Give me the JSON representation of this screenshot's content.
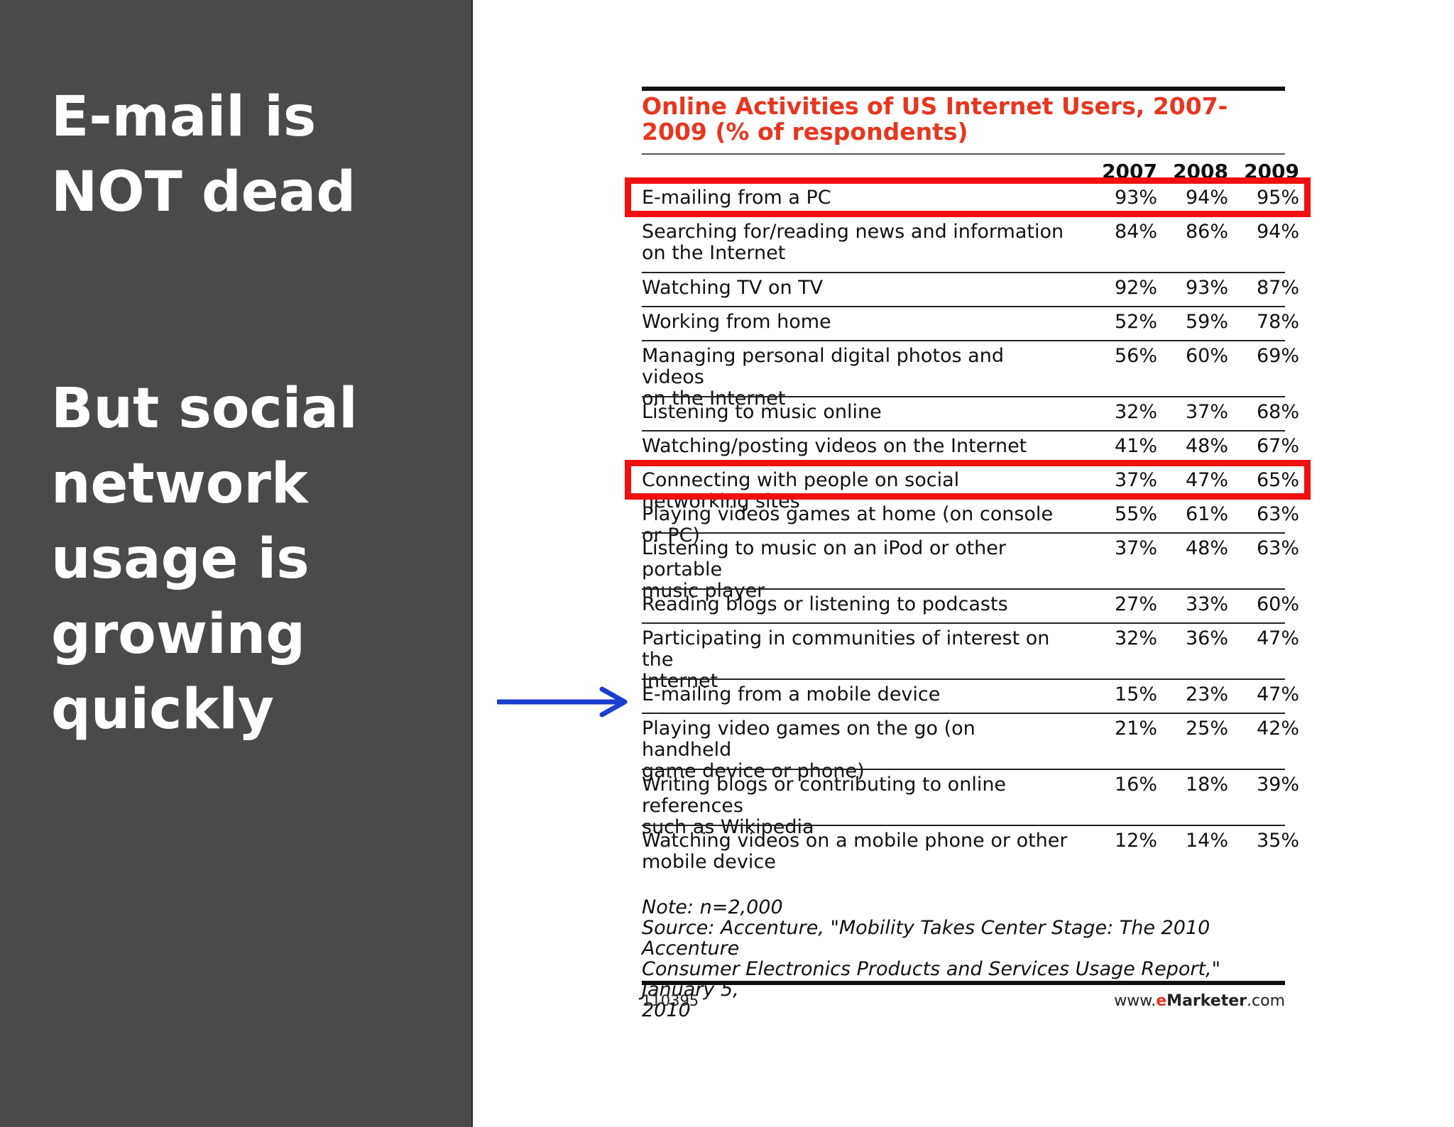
{
  "slide": {
    "headline_1": "E-mail is\nNOT dead",
    "headline_2": "But social\nnetwork\nusage is\ngrowing\nquickly"
  },
  "colors": {
    "panel": "#4a4a4a",
    "title_red": "#e8361e",
    "highlight_red": "#f01010",
    "arrow_blue": "#1a3ecf"
  },
  "icons": {
    "pointer": "arrow-right-icon"
  },
  "chart_data": {
    "type": "table",
    "title": "Online Activities of US Internet Users, 2007-2009 (% of respondents)",
    "columns": [
      "2007",
      "2008",
      "2009"
    ],
    "rows": [
      {
        "label": "E-mailing from a PC",
        "values": [
          "93%",
          "94%",
          "95%"
        ],
        "highlighted": true
      },
      {
        "label": "Searching for/reading news and information\non the Internet",
        "values": [
          "84%",
          "86%",
          "94%"
        ]
      },
      {
        "label": "Watching TV on TV",
        "values": [
          "92%",
          "93%",
          "87%"
        ]
      },
      {
        "label": "Working from home",
        "values": [
          "52%",
          "59%",
          "78%"
        ]
      },
      {
        "label": "Managing personal digital photos and videos\non the Internet",
        "values": [
          "56%",
          "60%",
          "69%"
        ]
      },
      {
        "label": "Listening to music online",
        "values": [
          "32%",
          "37%",
          "68%"
        ]
      },
      {
        "label": "Watching/posting videos on the Internet",
        "values": [
          "41%",
          "48%",
          "67%"
        ]
      },
      {
        "label": "Connecting with people on social networking sites",
        "values": [
          "37%",
          "47%",
          "65%"
        ],
        "highlighted": true
      },
      {
        "label": "Playing videos games at home (on console or PC)",
        "values": [
          "55%",
          "61%",
          "63%"
        ]
      },
      {
        "label": "Listening to music on an iPod or other portable\nmusic player",
        "values": [
          "37%",
          "48%",
          "63%"
        ]
      },
      {
        "label": "Reading blogs or listening to podcasts",
        "values": [
          "27%",
          "33%",
          "60%"
        ]
      },
      {
        "label": "Participating in communities of interest on the\nInternet",
        "values": [
          "32%",
          "36%",
          "47%"
        ]
      },
      {
        "label": "E-mailing from a mobile device",
        "values": [
          "15%",
          "23%",
          "47%"
        ],
        "arrow": true
      },
      {
        "label": "Playing video games on the go (on handheld\ngame device or phone)",
        "values": [
          "21%",
          "25%",
          "42%"
        ]
      },
      {
        "label": "Writing blogs or contributing to online references\nsuch as Wikipedia",
        "values": [
          "16%",
          "18%",
          "39%"
        ]
      },
      {
        "label": "Watching videos on a mobile phone or other\nmobile device",
        "values": [
          "12%",
          "14%",
          "35%"
        ]
      }
    ],
    "note": "Note: n=2,000\nSource: Accenture, \"Mobility Takes Center Stage: The 2010 Accenture\nConsumer Electronics Products and Services Usage Report,\" January 5,\n2010",
    "chart_id": "110395",
    "brand": {
      "prefix": "www.",
      "e": "e",
      "marketer": "Marketer",
      "suffix": ".com"
    }
  }
}
